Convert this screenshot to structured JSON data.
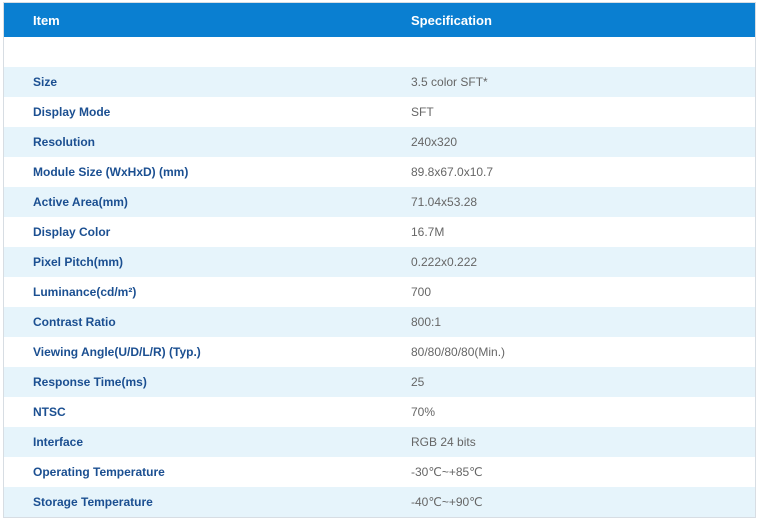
{
  "table": {
    "header": {
      "item": "Item",
      "specification": "Specification"
    },
    "rows": [
      {
        "item": "Size",
        "spec": "3.5 color SFT*"
      },
      {
        "item": "Display Mode",
        "spec": "SFT"
      },
      {
        "item": "Resolution",
        "spec": "240x320"
      },
      {
        "item": "Module Size (WxHxD) (mm)",
        "spec": "89.8x67.0x10.7"
      },
      {
        "item": "Active Area(mm)",
        "spec": "71.04x53.28"
      },
      {
        "item": "Display Color",
        "spec": "16.7M"
      },
      {
        "item": "Pixel Pitch(mm)",
        "spec": "0.222x0.222"
      },
      {
        "item": "Luminance(cd/m²)",
        "spec": "700"
      },
      {
        "item": "Contrast Ratio",
        "spec": "800:1"
      },
      {
        "item": "Viewing Angle(U/D/L/R) (Typ.)",
        "spec": "80/80/80/80(Min.)"
      },
      {
        "item": "Response Time(ms)",
        "spec": "25"
      },
      {
        "item": "NTSC",
        "spec": "70%"
      },
      {
        "item": "Interface",
        "spec": "RGB 24 bits"
      },
      {
        "item": "Operating Temperature",
        "spec": "-30℃~+85℃"
      },
      {
        "item": "Storage Temperature",
        "spec": "-40℃~+90℃"
      }
    ]
  },
  "colors": {
    "header_bg": "#0a7fd1",
    "item_text": "#1b4f91",
    "spec_text": "#666666",
    "stripe_bg": "#e6f4fb"
  }
}
